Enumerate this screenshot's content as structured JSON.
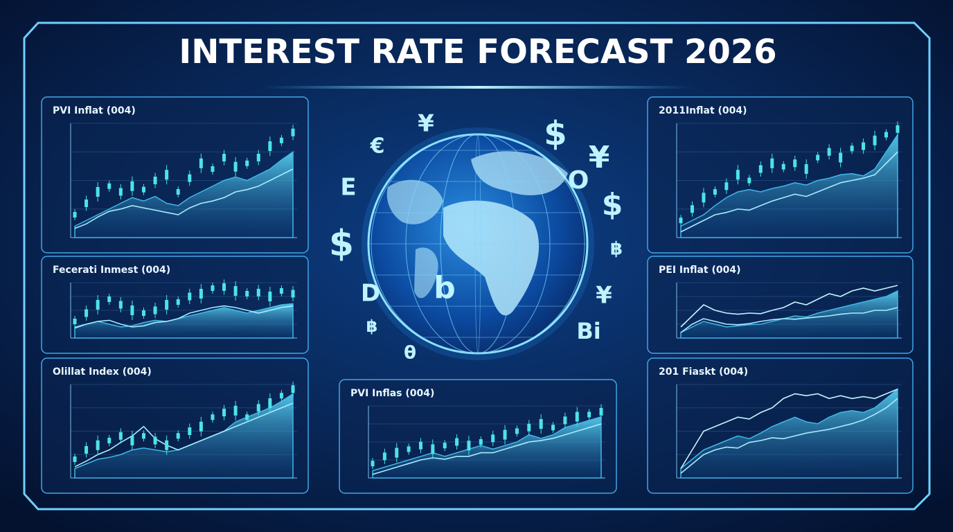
{
  "title": "INTEREST RATE FORECAST 2026",
  "symbols": [
    "€",
    "¥",
    "$",
    "¥",
    "E",
    "O",
    "$",
    "$",
    "฿",
    "b",
    "D",
    "¥",
    "฿",
    "Bi",
    "θ"
  ],
  "chart_data": [
    {
      "type": "line",
      "title": "PVI Inflat (004)",
      "ylim": [
        0,
        10
      ],
      "series": [
        {
          "color": "#3fb8e8",
          "fill": true,
          "values": [
            1,
            1.5,
            2,
            2.5,
            3,
            3.5,
            3.2,
            3.6,
            3,
            2.8,
            3.5,
            4,
            4.5,
            5,
            5.3,
            5,
            5.5,
            6,
            6.8,
            7.5
          ]
        },
        {
          "color": "#a8ecff",
          "values": [
            0.8,
            1.2,
            1.8,
            2.3,
            2.5,
            2.8,
            2.6,
            2.4,
            2.2,
            2,
            2.6,
            3,
            3.2,
            3.5,
            4,
            4.2,
            4.5,
            5,
            5.5,
            6
          ]
        },
        {
          "color": "#4de3e8",
          "candles": true,
          "values": [
            2,
            3,
            4,
            4.5,
            4,
            4.5,
            4.2,
            5,
            5.5,
            4,
            5.2,
            6.5,
            6,
            7,
            6.2,
            6.5,
            7,
            8,
            8.5,
            9.2
          ]
        }
      ]
    },
    {
      "type": "line",
      "title": "Fecerati Inmest (004)",
      "ylim": [
        0,
        10
      ],
      "series": [
        {
          "color": "#3fb8e8",
          "fill": true,
          "values": [
            2,
            2.5,
            3,
            2.5,
            2,
            2.2,
            2.8,
            3.2,
            3,
            3.5,
            4,
            4.5,
            5,
            5.5,
            5,
            4.5,
            5,
            5.5,
            6,
            6.2
          ]
        },
        {
          "color": "#a8ecff",
          "values": [
            1.8,
            2.5,
            3,
            3.2,
            2.5,
            2,
            2.2,
            2.8,
            3,
            3.5,
            4.5,
            5,
            5.5,
            5.8,
            5.5,
            5,
            4.5,
            5,
            5.5,
            5.8
          ]
        },
        {
          "color": "#4de3e8",
          "candles": true,
          "values": [
            3,
            4.5,
            6,
            7,
            6,
            5,
            4.5,
            5,
            6,
            6.5,
            7.5,
            8,
            9,
            9.2,
            8.5,
            8,
            8.2,
            7.5,
            8.5,
            8
          ]
        }
      ]
    },
    {
      "type": "line",
      "title": "Olillat Index (004)",
      "ylim": [
        0,
        10
      ],
      "series": [
        {
          "color": "#3fb8e8",
          "fill": true,
          "values": [
            1,
            1.5,
            2,
            2.2,
            2.5,
            3,
            3.2,
            3,
            2.8,
            3,
            3.5,
            4,
            4.5,
            5,
            6,
            6.5,
            7,
            7.5,
            8.2,
            9
          ]
        },
        {
          "color": "#a8ecff",
          "values": [
            1.2,
            1.8,
            2.5,
            3,
            3.8,
            4.5,
            5.5,
            4.2,
            3.5,
            3,
            3.5,
            4,
            4.5,
            5,
            5.5,
            6,
            6.5,
            7,
            7.5,
            8
          ]
        },
        {
          "color": "#4de3e8",
          "candles": true,
          "values": [
            2,
            3,
            3.5,
            4,
            4.5,
            4,
            4.5,
            4,
            3.5,
            4.5,
            5,
            5.5,
            6.5,
            7,
            7.2,
            6.5,
            7.5,
            8,
            8.8,
            9.5
          ]
        }
      ]
    },
    {
      "type": "line",
      "title": "2011Inflat (004)",
      "ylim": [
        0,
        10
      ],
      "series": [
        {
          "color": "#3fb8e8",
          "fill": true,
          "values": [
            1,
            1.5,
            2,
            2.8,
            3.5,
            4,
            4.2,
            4,
            4.3,
            4.5,
            4.8,
            4.6,
            5,
            5.2,
            5.5,
            5.6,
            5.4,
            6,
            7.5,
            9
          ]
        },
        {
          "color": "#a8ecff",
          "values": [
            0.5,
            1,
            1.5,
            2,
            2.2,
            2.5,
            2.4,
            2.8,
            3.2,
            3.5,
            3.8,
            3.6,
            4,
            4.4,
            4.8,
            5,
            5.2,
            5.5,
            6.5,
            7.5
          ]
        },
        {
          "color": "#4de3e8",
          "candles": true,
          "values": [
            1.5,
            2.5,
            3.5,
            4,
            4.5,
            5.5,
            5,
            6,
            6.5,
            6.2,
            6.5,
            6,
            7,
            7.5,
            7,
            7.8,
            8,
            8.5,
            9,
            9.5
          ]
        }
      ]
    },
    {
      "type": "line",
      "title": "PEI Inflat (004)",
      "ylim": [
        0,
        10
      ],
      "series": [
        {
          "color": "#3fb8e8",
          "fill": true,
          "values": [
            1,
            2,
            3,
            2.5,
            2,
            2.2,
            2.4,
            2.5,
            3,
            3.5,
            4,
            3.8,
            4.5,
            5,
            5.5,
            6,
            6.5,
            7,
            7.5,
            8.5
          ]
        },
        {
          "color": "#a8ecff",
          "values": [
            1,
            2.5,
            3.5,
            3,
            2.5,
            2.4,
            2.6,
            3,
            3.3,
            3.5,
            3.4,
            3.6,
            3.8,
            4,
            4.3,
            4.5,
            4.5,
            5,
            5,
            5.5
          ]
        },
        {
          "color": "#c8f4ff",
          "values": [
            2,
            4,
            6,
            5,
            4.5,
            4.3,
            4.5,
            4.4,
            5,
            5.5,
            6.5,
            6,
            7,
            8,
            7.5,
            8.5,
            9,
            8.5,
            9,
            9.5
          ]
        }
      ]
    },
    {
      "type": "line",
      "title": "201 Fiaskt (004)",
      "ylim": [
        0,
        10
      ],
      "series": [
        {
          "color": "#3fb8e8",
          "fill": true,
          "values": [
            1,
            2,
            3,
            3.5,
            4,
            4.5,
            4.2,
            4.8,
            5.5,
            6,
            6.5,
            6,
            5.8,
            6.5,
            7,
            7.2,
            7,
            7.5,
            8.5,
            9.5
          ]
        },
        {
          "color": "#a8ecff",
          "values": [
            0.5,
            1.5,
            2.5,
            3,
            3.3,
            3.2,
            3.8,
            4,
            4.3,
            4.2,
            4.5,
            4.8,
            5,
            5.2,
            5.5,
            5.8,
            6.2,
            6.8,
            7.5,
            8.5
          ]
        },
        {
          "color": "#c8f4ff",
          "values": [
            1,
            3,
            5,
            5.5,
            6,
            6.5,
            6.3,
            7,
            7.5,
            8.5,
            9,
            8.8,
            9,
            8.5,
            8.8,
            8.5,
            8.7,
            8.5,
            9,
            9.5
          ]
        }
      ]
    },
    {
      "type": "line",
      "title": "PVI Inflas (004)",
      "ylim": [
        0,
        10
      ],
      "series": [
        {
          "color": "#3fb8e8",
          "fill": true,
          "values": [
            1,
            1.5,
            2,
            2.5,
            3,
            3.5,
            3,
            3.5,
            4,
            4.5,
            4,
            4.5,
            5,
            6,
            5.5,
            6,
            7,
            7.5,
            8,
            8.5
          ]
        },
        {
          "color": "#a8ecff",
          "values": [
            0.5,
            1,
            1.5,
            2,
            2.5,
            2.8,
            2.6,
            3,
            3,
            3.5,
            3.5,
            4,
            4.5,
            5,
            5.2,
            5.5,
            6,
            6.5,
            7,
            7.5
          ]
        },
        {
          "color": "#4de3e8",
          "candles": true,
          "values": [
            2,
            3,
            3.5,
            4,
            4.5,
            4,
            4.5,
            5,
            4.5,
            5,
            5.5,
            6,
            6.5,
            7,
            7.5,
            7,
            8,
            8.5,
            8.8,
            9.2
          ]
        }
      ]
    }
  ]
}
